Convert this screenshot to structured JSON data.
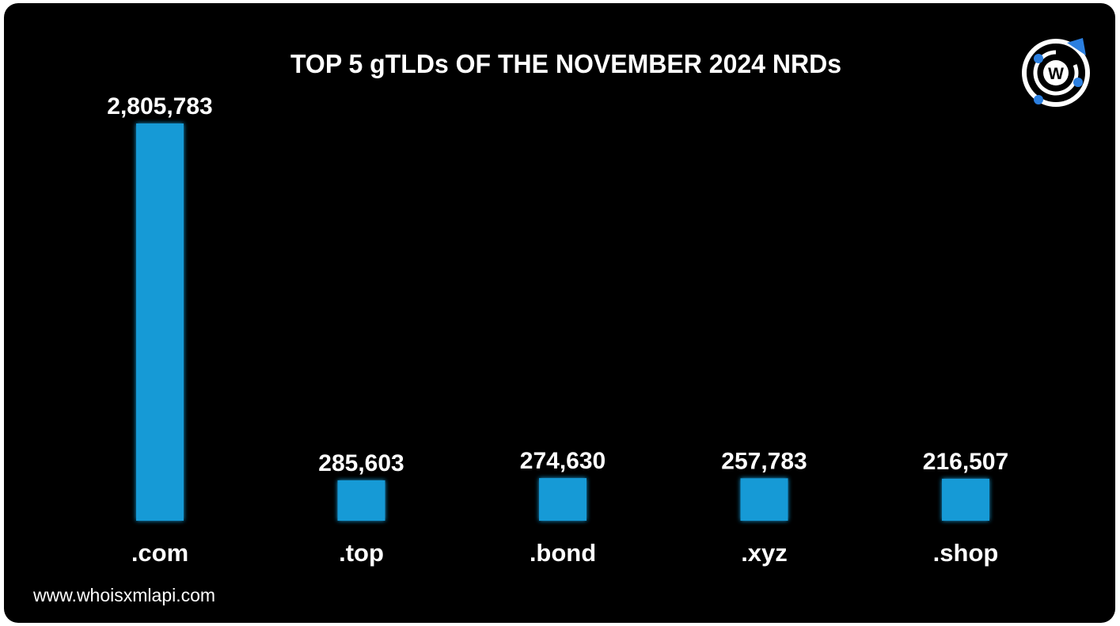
{
  "title": "TOP 5 gTLDs OF THE NOVEMBER 2024 NRDs",
  "footer": "www.whoisxmlapi.com",
  "logo_letter": "W",
  "colors": {
    "background": "#000000",
    "bar": "#179ad6",
    "text": "#ffffff",
    "logo_accent": "#2b7fe0"
  },
  "chart_data": {
    "type": "bar",
    "title": "TOP 5 gTLDs OF THE NOVEMBER 2024 NRDs",
    "categories": [
      ".com",
      ".top",
      ".bond",
      ".xyz",
      ".shop"
    ],
    "values": [
      2805783,
      285603,
      274630,
      257783,
      216507
    ],
    "value_labels": [
      "2,805,783",
      "285,603",
      "274,630",
      "257,783",
      "216,507"
    ],
    "xlabel": "",
    "ylabel": "",
    "ylim": [
      0,
      2805783
    ],
    "grid": false,
    "legend": "none"
  }
}
